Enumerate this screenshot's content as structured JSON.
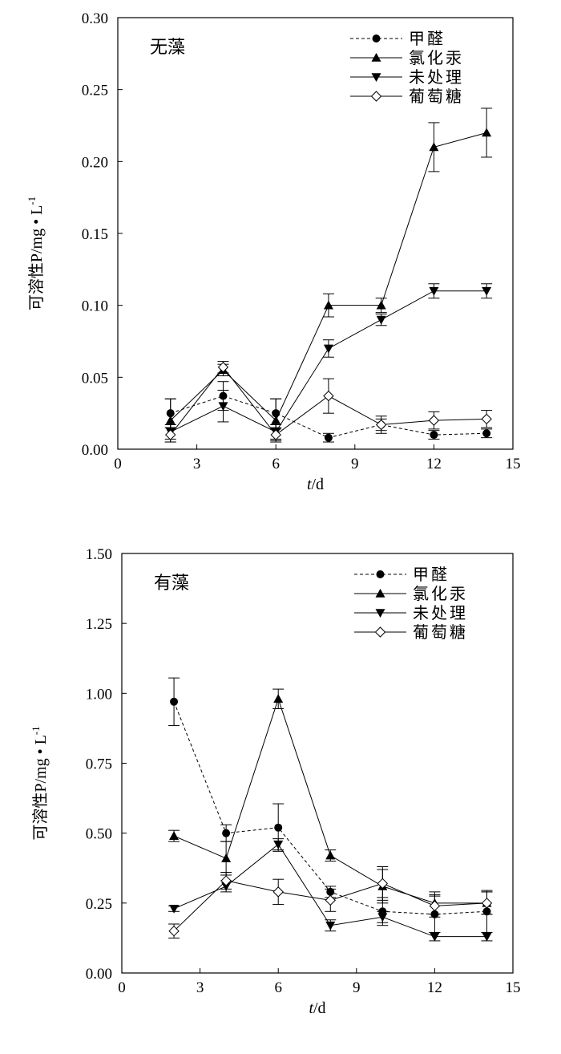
{
  "chart_data": [
    {
      "type": "line",
      "panel_label": "无藻",
      "xlabel_italic": "t",
      "xlabel_unit": "/d",
      "ylabel": "可溶性P/mg • L",
      "ylabel_sup": "-1",
      "xlim": [
        0,
        15
      ],
      "ylim": [
        0,
        0.3
      ],
      "xticks": [
        0,
        3,
        6,
        9,
        12,
        15
      ],
      "yticks": [
        0.0,
        0.05,
        0.1,
        0.15,
        0.2,
        0.25,
        0.3
      ],
      "ytick_decimals": 2,
      "legend_position": "top-right",
      "series": [
        {
          "name": "甲醛",
          "marker": "circle",
          "dashed": true,
          "x": [
            2,
            4,
            6,
            8,
            10,
            12,
            14
          ],
          "y": [
            0.025,
            0.037,
            0.025,
            0.008,
            0.017,
            0.01,
            0.011
          ],
          "err": [
            0.01,
            0.01,
            0.01,
            0.003,
            0.004,
            0.003,
            0.003
          ]
        },
        {
          "name": "氯化汞",
          "marker": "triangle-up",
          "dashed": false,
          "x": [
            2,
            4,
            6,
            8,
            10,
            12,
            14
          ],
          "y": [
            0.02,
            0.055,
            0.02,
            0.1,
            0.1,
            0.21,
            0.22
          ],
          "err": [
            0.015,
            0.004,
            0.015,
            0.008,
            0.005,
            0.017,
            0.017
          ]
        },
        {
          "name": "未处理",
          "marker": "triangle-down",
          "dashed": false,
          "x": [
            2,
            4,
            6,
            8,
            10,
            12,
            14
          ],
          "y": [
            0.012,
            0.03,
            0.012,
            0.07,
            0.09,
            0.11,
            0.11
          ],
          "err": [
            0.005,
            0.011,
            0.005,
            0.006,
            0.004,
            0.005,
            0.005
          ]
        },
        {
          "name": "葡萄糖",
          "marker": "diamond-open",
          "dashed": false,
          "x": [
            2,
            4,
            6,
            8,
            10,
            12,
            14
          ],
          "y": [
            0.01,
            0.057,
            0.01,
            0.037,
            0.017,
            0.02,
            0.021
          ],
          "err": [
            0.005,
            0.004,
            0.004,
            0.012,
            0.006,
            0.006,
            0.006
          ]
        }
      ]
    },
    {
      "type": "line",
      "panel_label": "有藻",
      "xlabel_italic": "t",
      "xlabel_unit": "/d",
      "ylabel": "可溶性P/mg • L",
      "ylabel_sup": "-1",
      "xlim": [
        0,
        15
      ],
      "ylim": [
        0,
        1.5
      ],
      "xticks": [
        0,
        3,
        6,
        9,
        12,
        15
      ],
      "yticks": [
        0.0,
        0.25,
        0.5,
        0.75,
        1.0,
        1.25,
        1.5
      ],
      "ytick_decimals": 2,
      "legend_position": "top-right",
      "series": [
        {
          "name": "甲醛",
          "marker": "circle",
          "dashed": true,
          "x": [
            2,
            4,
            6,
            8,
            10,
            12,
            14
          ],
          "y": [
            0.97,
            0.5,
            0.52,
            0.29,
            0.22,
            0.21,
            0.22
          ],
          "err": [
            0.085,
            0.03,
            0.085,
            0.02,
            0.05,
            0.065,
            0.075
          ]
        },
        {
          "name": "氯化汞",
          "marker": "triangle-up",
          "dashed": false,
          "x": [
            2,
            4,
            6,
            8,
            10,
            12,
            14
          ],
          "y": [
            0.49,
            0.41,
            0.98,
            0.42,
            0.31,
            0.25,
            0.25
          ],
          "err": [
            0.02,
            0.06,
            0.035,
            0.02,
            0.06,
            0.04,
            0.04
          ]
        },
        {
          "name": "未处理",
          "marker": "triangle-down",
          "dashed": false,
          "x": [
            2,
            4,
            6,
            8,
            10,
            12,
            14
          ],
          "y": [
            0.23,
            0.31,
            0.46,
            0.17,
            0.2,
            0.13,
            0.13
          ],
          "err": [
            0.01,
            0.02,
            0.02,
            0.02,
            0.02,
            0.015,
            0.015
          ]
        },
        {
          "name": "葡萄糖",
          "marker": "diamond-open",
          "dashed": false,
          "x": [
            2,
            4,
            6,
            8,
            10,
            12,
            14
          ],
          "y": [
            0.15,
            0.33,
            0.29,
            0.26,
            0.32,
            0.24,
            0.25
          ],
          "err": [
            0.025,
            0.03,
            0.045,
            0.04,
            0.06,
            0.04,
            0.04
          ]
        }
      ]
    }
  ]
}
